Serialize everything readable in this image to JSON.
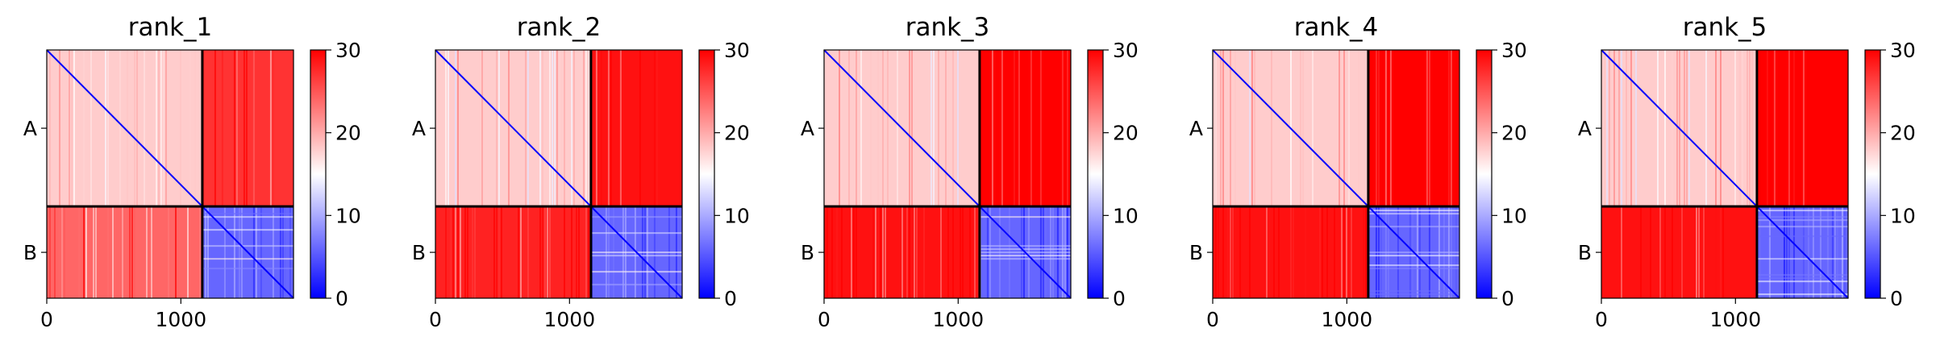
{
  "chart_data": [
    {
      "type": "heatmap",
      "title": "rank_1",
      "chains": [
        {
          "label": "A",
          "length": 1160
        },
        {
          "label": "B",
          "length": 680
        }
      ],
      "x_ticks": [
        0,
        1000
      ],
      "xlim": [
        0,
        1840
      ],
      "colorbar": {
        "ticks": [
          0,
          10,
          20,
          30
        ],
        "range": [
          0,
          30
        ],
        "colors": [
          "#0000ff",
          "#ffffff",
          "#ff0000"
        ]
      },
      "blocks": [
        {
          "rows": "A",
          "cols": "A",
          "mean_value": 18,
          "pattern": "intra-chain domains, low error"
        },
        {
          "rows": "A",
          "cols": "B",
          "mean_value": 27,
          "pattern": "mostly high with lighter band"
        },
        {
          "rows": "B",
          "cols": "A",
          "mean_value": 24,
          "pattern": "mixed with white/blue stripes"
        },
        {
          "rows": "B",
          "cols": "B",
          "mean_value": 6,
          "pattern": "low error"
        }
      ]
    },
    {
      "type": "heatmap",
      "title": "rank_2",
      "chains": [
        {
          "label": "A",
          "length": 1160
        },
        {
          "label": "B",
          "length": 680
        }
      ],
      "x_ticks": [
        0,
        1000
      ],
      "xlim": [
        0,
        1840
      ],
      "colorbar": {
        "ticks": [
          0,
          10,
          20,
          30
        ],
        "range": [
          0,
          30
        ],
        "colors": [
          "#0000ff",
          "#ffffff",
          "#ff0000"
        ]
      },
      "blocks": [
        {
          "rows": "A",
          "cols": "A",
          "mean_value": 18
        },
        {
          "rows": "A",
          "cols": "B",
          "mean_value": 29
        },
        {
          "rows": "B",
          "cols": "A",
          "mean_value": 28
        },
        {
          "rows": "B",
          "cols": "B",
          "mean_value": 6
        }
      ]
    },
    {
      "type": "heatmap",
      "title": "rank_3",
      "chains": [
        {
          "label": "A",
          "length": 1160
        },
        {
          "label": "B",
          "length": 680
        }
      ],
      "x_ticks": [
        0,
        1000
      ],
      "xlim": [
        0,
        1840
      ],
      "colorbar": {
        "ticks": [
          0,
          10,
          20,
          30
        ],
        "range": [
          0,
          30
        ],
        "colors": [
          "#0000ff",
          "#ffffff",
          "#ff0000"
        ]
      },
      "blocks": [
        {
          "rows": "A",
          "cols": "A",
          "mean_value": 18
        },
        {
          "rows": "A",
          "cols": "B",
          "mean_value": 30
        },
        {
          "rows": "B",
          "cols": "A",
          "mean_value": 29
        },
        {
          "rows": "B",
          "cols": "B",
          "mean_value": 6
        }
      ]
    },
    {
      "type": "heatmap",
      "title": "rank_4",
      "chains": [
        {
          "label": "A",
          "length": 1160
        },
        {
          "label": "B",
          "length": 680
        }
      ],
      "x_ticks": [
        0,
        1000
      ],
      "xlim": [
        0,
        1840
      ],
      "colorbar": {
        "ticks": [
          0,
          10,
          20,
          30
        ],
        "range": [
          0,
          30
        ],
        "colors": [
          "#0000ff",
          "#ffffff",
          "#ff0000"
        ]
      },
      "blocks": [
        {
          "rows": "A",
          "cols": "A",
          "mean_value": 18
        },
        {
          "rows": "A",
          "cols": "B",
          "mean_value": 30
        },
        {
          "rows": "B",
          "cols": "A",
          "mean_value": 29
        },
        {
          "rows": "B",
          "cols": "B",
          "mean_value": 6
        }
      ]
    },
    {
      "type": "heatmap",
      "title": "rank_5",
      "chains": [
        {
          "label": "A",
          "length": 1160
        },
        {
          "label": "B",
          "length": 680
        }
      ],
      "x_ticks": [
        0,
        1000
      ],
      "xlim": [
        0,
        1840
      ],
      "colorbar": {
        "ticks": [
          0,
          10,
          20,
          30
        ],
        "range": [
          0,
          30
        ],
        "colors": [
          "#0000ff",
          "#ffffff",
          "#ff0000"
        ]
      },
      "blocks": [
        {
          "rows": "A",
          "cols": "A",
          "mean_value": 18
        },
        {
          "rows": "A",
          "cols": "B",
          "mean_value": 30
        },
        {
          "rows": "B",
          "cols": "A",
          "mean_value": 29
        },
        {
          "rows": "B",
          "cols": "B",
          "mean_value": 6
        }
      ]
    }
  ]
}
